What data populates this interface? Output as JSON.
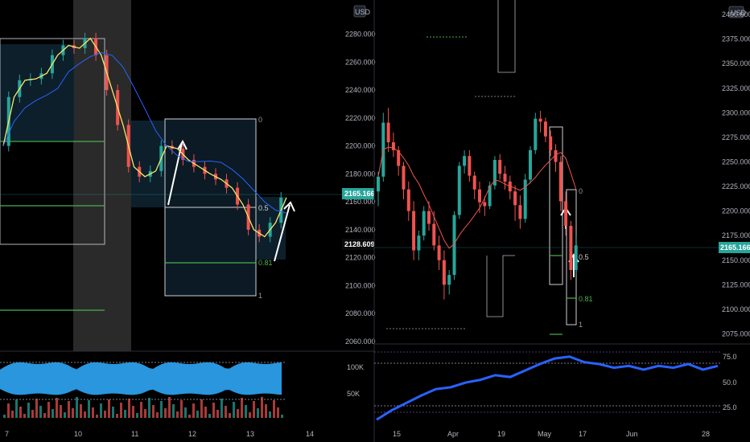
{
  "colors": {
    "up": "#26a69a",
    "down": "#ef5350",
    "ma_left": "#f5e86a",
    "ma_slow": "#2962ff",
    "ma_right": "#ef5350",
    "level": "#4caf50",
    "fib_box": "#cfd0d4",
    "rsi_line": "#2962ff",
    "oscillator_fill": "#2ea6f5",
    "price_badge": "#26a69a"
  },
  "left_panel": {
    "currency": "USD",
    "price_badge_current": "2165.166",
    "price_badge_secondary": "2128.609",
    "fib_labels": {
      "l0": "0",
      "l05": "0.5",
      "l081": "0.81",
      "l1": "1"
    },
    "volume_labels": {
      "v100k": "100K",
      "v50k": "50K"
    }
  },
  "right_panel": {
    "currency": "USD",
    "price_badge_current": "2165.166",
    "fib_labels": {
      "l0": "0",
      "l05": "0.5",
      "l081": "0.81",
      "l1": "1"
    },
    "rsi_labels": {
      "r75": "75.0",
      "r50": "50.0",
      "r25": "25.0"
    }
  },
  "chart_data": [
    {
      "type": "line",
      "description_note": "",
      "title": "",
      "x_tick_labels": [
        "7",
        "10",
        "11",
        "12",
        "13",
        "14"
      ],
      "y_tick_labels": [
        "2280.000",
        "2260.000",
        "2240.000",
        "2220.000",
        "2200.000",
        "2180.000",
        "2160.000",
        "2140.000",
        "2120.000",
        "2100.000",
        "2080.000",
        "2060.000"
      ],
      "ylim": [
        2057,
        2293
      ],
      "series": [
        {
          "values": [
            2200,
            2235,
            2247,
            2248,
            2252,
            2265,
            2272,
            2270,
            2277,
            2265,
            2240,
            2215,
            2185,
            2178,
            2182,
            2200,
            2198,
            2190,
            2185,
            2180,
            2176,
            2170,
            2158,
            2140,
            2135,
            2145,
            2163
          ]
        }
      ],
      "current_price": 2165.166
    },
    {
      "type": "bar",
      "title": "",
      "x_tick_labels": [
        "15",
        "Apr",
        "19",
        "May",
        "17",
        "Jun",
        "28"
      ],
      "y_tick_labels": [
        "2400.000",
        "2375.000",
        "2350.000",
        "2325.000",
        "2300.000",
        "2275.000",
        "2250.000",
        "2225.000",
        "2200.000",
        "2175.000",
        "2150.000",
        "2125.000",
        "2100.000",
        "2075.000"
      ],
      "ylim": [
        2068,
        2405
      ],
      "candles_ohlc": [
        [
          2220,
          2240,
          2205,
          2235
        ],
        [
          2235,
          2300,
          2230,
          2290
        ],
        [
          2290,
          2305,
          2260,
          2270
        ],
        [
          2270,
          2280,
          2255,
          2262
        ],
        [
          2262,
          2266,
          2236,
          2246
        ],
        [
          2246,
          2250,
          2212,
          2222
        ],
        [
          2222,
          2230,
          2190,
          2200
        ],
        [
          2200,
          2210,
          2150,
          2160
        ],
        [
          2160,
          2180,
          2150,
          2175
        ],
        [
          2175,
          2205,
          2170,
          2200
        ],
        [
          2200,
          2210,
          2180,
          2187
        ],
        [
          2187,
          2200,
          2160,
          2165
        ],
        [
          2165,
          2175,
          2140,
          2150
        ],
        [
          2150,
          2160,
          2110,
          2125
        ],
        [
          2125,
          2140,
          2115,
          2135
        ],
        [
          2135,
          2200,
          2130,
          2196
        ],
        [
          2196,
          2250,
          2192,
          2246
        ],
        [
          2246,
          2262,
          2238,
          2256
        ],
        [
          2256,
          2262,
          2230,
          2236
        ],
        [
          2236,
          2240,
          2212,
          2222
        ],
        [
          2222,
          2230,
          2198,
          2209
        ],
        [
          2209,
          2215,
          2195,
          2205
        ],
        [
          2205,
          2230,
          2202,
          2226
        ],
        [
          2226,
          2256,
          2222,
          2252
        ],
        [
          2252,
          2258,
          2232,
          2238
        ],
        [
          2238,
          2246,
          2222,
          2230
        ],
        [
          2230,
          2236,
          2212,
          2220
        ],
        [
          2220,
          2226,
          2190,
          2206
        ],
        [
          2206,
          2216,
          2182,
          2192
        ],
        [
          2192,
          2238,
          2188,
          2232
        ],
        [
          2232,
          2266,
          2228,
          2262
        ],
        [
          2262,
          2300,
          2258,
          2294
        ],
        [
          2294,
          2302,
          2280,
          2291
        ],
        [
          2291,
          2295,
          2270,
          2276
        ],
        [
          2276,
          2282,
          2256,
          2262
        ],
        [
          2262,
          2268,
          2240,
          2250
        ],
        [
          2250,
          2256,
          2200,
          2210
        ],
        [
          2210,
          2220,
          2175,
          2185
        ],
        [
          2185,
          2190,
          2130,
          2140
        ],
        [
          2140,
          2175,
          2135,
          2165
        ]
      ],
      "rsi": {
        "values": [
          12,
          22,
          30,
          38,
          45,
          47,
          52,
          55,
          60,
          58,
          65,
          72,
          78,
          80,
          74,
          72,
          68,
          70,
          66,
          70,
          68,
          72,
          66,
          70
        ],
        "levels": [
          75,
          50,
          25
        ]
      },
      "current_price": 2165.166
    }
  ]
}
